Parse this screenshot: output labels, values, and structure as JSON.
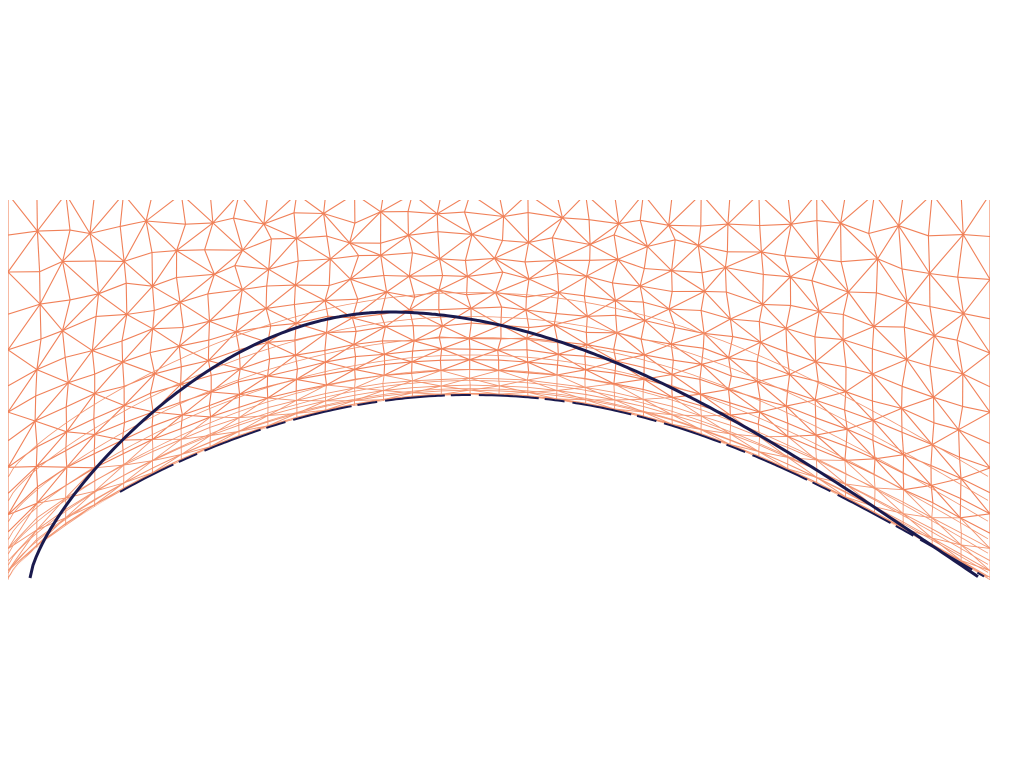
{
  "figure": {
    "description_colors": {
      "background": "#ffffff",
      "mesh": "#f08058",
      "mesh_dense": "#f39570",
      "curve": "#1a1a4e"
    },
    "mesh_type": "triangular",
    "curve_count": 2
  }
}
